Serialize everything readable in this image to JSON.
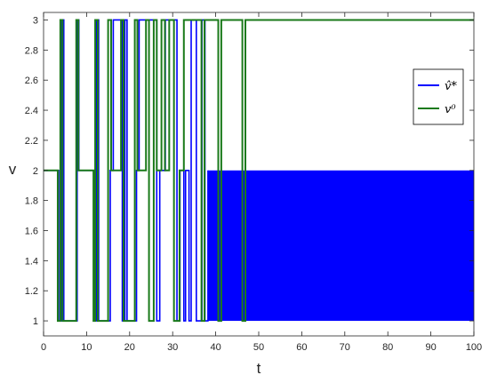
{
  "chart_data": {
    "type": "line",
    "xlabel": "t",
    "ylabel": "v",
    "xlim": [
      0,
      100
    ],
    "ylim": [
      0.9,
      3.05
    ],
    "xticks": [
      0,
      10,
      20,
      30,
      40,
      50,
      60,
      70,
      80,
      90,
      100
    ],
    "yticks": [
      1,
      1.2,
      1.4,
      1.6,
      1.8,
      2,
      2.2,
      2.4,
      2.6,
      2.8,
      3
    ],
    "ytick_labels": [
      "1",
      "1.2",
      "1.4",
      "1.6",
      "1.8",
      "2",
      "2.2",
      "2.4",
      "2.6",
      "2.8",
      "3"
    ],
    "grid": false,
    "legend_position": "right",
    "series": [
      {
        "name": "v̂*",
        "color": "#0000ff",
        "points": [
          [
            0,
            2
          ],
          [
            3.5,
            2
          ],
          [
            3.5,
            1
          ],
          [
            4.2,
            1
          ],
          [
            4.2,
            3
          ],
          [
            4.7,
            3
          ],
          [
            4.7,
            1
          ],
          [
            7.8,
            1
          ],
          [
            7.8,
            3
          ],
          [
            8.2,
            3
          ],
          [
            8.2,
            2
          ],
          [
            11.8,
            2
          ],
          [
            11.8,
            1
          ],
          [
            12.3,
            1
          ],
          [
            12.3,
            3
          ],
          [
            12.8,
            3
          ],
          [
            12.8,
            1
          ],
          [
            15.5,
            1
          ],
          [
            15.5,
            2
          ],
          [
            16.2,
            2
          ],
          [
            16.2,
            3
          ],
          [
            18.3,
            3
          ],
          [
            18.3,
            1
          ],
          [
            18.9,
            1
          ],
          [
            18.9,
            3
          ],
          [
            19.4,
            3
          ],
          [
            19.4,
            1
          ],
          [
            21.6,
            1
          ],
          [
            21.6,
            2
          ],
          [
            22.2,
            2
          ],
          [
            22.2,
            3
          ],
          [
            26.3,
            3
          ],
          [
            26.3,
            1
          ],
          [
            27.0,
            1
          ],
          [
            27.0,
            2
          ],
          [
            28.3,
            2
          ],
          [
            28.3,
            3
          ],
          [
            31.0,
            3
          ],
          [
            31.0,
            1
          ],
          [
            31.7,
            1
          ],
          [
            31.7,
            2
          ],
          [
            32.6,
            2
          ],
          [
            32.6,
            1
          ],
          [
            33.0,
            1
          ],
          [
            33.0,
            2
          ],
          [
            33.8,
            2
          ],
          [
            33.8,
            1
          ],
          [
            34.3,
            1
          ],
          [
            34.3,
            3
          ],
          [
            35.5,
            3
          ],
          [
            35.5,
            1
          ],
          [
            36.8,
            1
          ],
          [
            36.8,
            3
          ],
          [
            37.5,
            3
          ],
          [
            37.5,
            1
          ],
          [
            38.2,
            1
          ],
          [
            38.2,
            2
          ]
        ],
        "dense_band": {
          "from": 38.2,
          "to": 100,
          "low": 1,
          "high": 2
        }
      },
      {
        "name": "v⁰",
        "color": "#1a7a1a",
        "points": [
          [
            0,
            2
          ],
          [
            3.3,
            2
          ],
          [
            3.3,
            1
          ],
          [
            3.9,
            1
          ],
          [
            3.9,
            3
          ],
          [
            4.4,
            3
          ],
          [
            4.4,
            1
          ],
          [
            7.6,
            1
          ],
          [
            7.6,
            3
          ],
          [
            8.1,
            3
          ],
          [
            8.1,
            2
          ],
          [
            11.6,
            2
          ],
          [
            11.6,
            1
          ],
          [
            12.0,
            1
          ],
          [
            12.0,
            3
          ],
          [
            12.6,
            3
          ],
          [
            12.6,
            1
          ],
          [
            15.0,
            1
          ],
          [
            15.0,
            3
          ],
          [
            15.7,
            3
          ],
          [
            15.7,
            2
          ],
          [
            18.0,
            2
          ],
          [
            18.0,
            3
          ],
          [
            18.6,
            3
          ],
          [
            18.6,
            1
          ],
          [
            21.2,
            1
          ],
          [
            21.2,
            3
          ],
          [
            21.8,
            3
          ],
          [
            21.8,
            2
          ],
          [
            23.8,
            2
          ],
          [
            23.8,
            3
          ],
          [
            24.5,
            3
          ],
          [
            24.5,
            1
          ],
          [
            25.6,
            1
          ],
          [
            25.6,
            3
          ],
          [
            26.3,
            3
          ],
          [
            26.3,
            2
          ],
          [
            27.4,
            2
          ],
          [
            27.4,
            3
          ],
          [
            28.2,
            3
          ],
          [
            28.2,
            2
          ],
          [
            29.2,
            2
          ],
          [
            29.2,
            3
          ],
          [
            30.3,
            3
          ],
          [
            30.3,
            1
          ],
          [
            31.6,
            1
          ],
          [
            31.6,
            2
          ],
          [
            32.6,
            2
          ],
          [
            32.6,
            3
          ],
          [
            36.7,
            3
          ],
          [
            36.7,
            1
          ],
          [
            37.4,
            1
          ],
          [
            37.4,
            3
          ],
          [
            40.6,
            3
          ],
          [
            40.6,
            1
          ],
          [
            41.3,
            1
          ],
          [
            41.3,
            3
          ],
          [
            46.2,
            3
          ],
          [
            46.2,
            1
          ],
          [
            46.9,
            1
          ],
          [
            46.9,
            3
          ],
          [
            100,
            3
          ]
        ]
      }
    ]
  }
}
